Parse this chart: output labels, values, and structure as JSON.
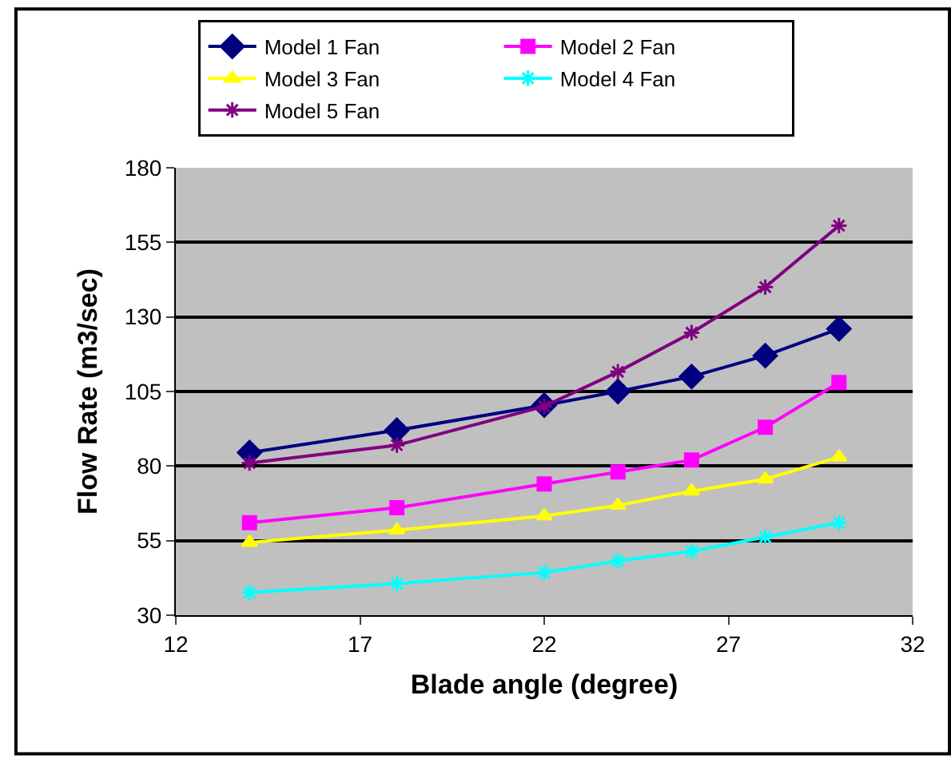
{
  "chart_data": {
    "type": "line",
    "xlabel": "Blade angle (degree)",
    "ylabel": "Flow Rate (m3/sec)",
    "x": [
      14,
      18,
      22,
      24,
      26,
      28,
      30
    ],
    "xlim": [
      12,
      32
    ],
    "xticks": [
      12,
      17,
      22,
      27,
      32
    ],
    "ylim": [
      30,
      180
    ],
    "yticks": [
      30,
      55,
      80,
      105,
      130,
      155,
      180
    ],
    "grid": "y",
    "legend": "top",
    "series": [
      {
        "name": "Model 1 Fan",
        "color": "#000080",
        "marker": "diamond",
        "values": [
          84.5,
          92,
          100.4,
          105,
          110,
          117,
          126
        ]
      },
      {
        "name": "Model 2 Fan",
        "color": "#ff00ff",
        "marker": "square",
        "values": [
          61,
          66,
          74,
          78,
          82,
          93,
          108
        ]
      },
      {
        "name": "Model 3 Fan",
        "color": "#ffff00",
        "marker": "triangle",
        "values": [
          54.4,
          58.5,
          63.3,
          66.8,
          71.6,
          75.6,
          83
        ]
      },
      {
        "name": "Model 4 Fan",
        "color": "#00ffff",
        "marker": "cross",
        "values": [
          37.6,
          40.6,
          44.3,
          48.2,
          51.4,
          56.2,
          61
        ]
      },
      {
        "name": "Model 5 Fan",
        "color": "#800080",
        "marker": "cross",
        "values": [
          81,
          87,
          100,
          111.6,
          124.7,
          140,
          160.6
        ]
      }
    ]
  }
}
